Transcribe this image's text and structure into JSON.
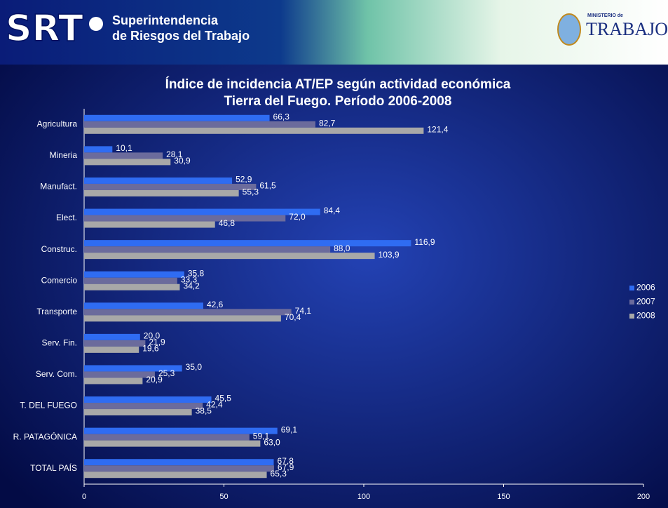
{
  "header": {
    "logo": "SRT",
    "org_line1": "Superintendencia",
    "org_line2": "de Riesgos del Trabajo",
    "ministry_small": "MINISTERIO de",
    "ministry": "TRABAJO"
  },
  "chart_data": {
    "type": "barh",
    "title": "Índice de incidencia  AT/EP según actividad económica",
    "subtitle": "Tierra del Fuego. Período 2006-2008",
    "categories": [
      "Agricultura",
      "Mineria",
      "Manufact.",
      "Elect.",
      "Construc.",
      "Comercio",
      "Transporte",
      "Serv. Fin.",
      "Serv. Com.",
      "T. DEL FUEGO",
      "R. PATAGÓNICA",
      "TOTAL PAÍS"
    ],
    "series": [
      {
        "name": "2006",
        "color": "#2f6cf2",
        "values": [
          66.3,
          10.1,
          52.9,
          84.4,
          116.9,
          35.8,
          42.6,
          20.0,
          35.0,
          45.5,
          69.1,
          67.8
        ],
        "value_labels": [
          "66,3",
          "10,1",
          "52,9",
          "84,4",
          "116,9",
          "35,8",
          "42,6",
          "20,0",
          "35,0",
          "45,5",
          "69,1",
          "67,8"
        ]
      },
      {
        "name": "2007",
        "color": "#6b6b9c",
        "values": [
          82.7,
          28.1,
          61.5,
          72.0,
          88.0,
          33.3,
          74.1,
          21.9,
          25.3,
          42.4,
          59.1,
          67.9
        ],
        "value_labels": [
          "82,7",
          "28,1",
          "61,5",
          "72,0",
          "88,0",
          "33,3",
          "74,1",
          "21,9",
          "25,3",
          "42,4",
          "59,1",
          "67,9"
        ]
      },
      {
        "name": "2008",
        "color": "#a8a8a8",
        "values": [
          121.4,
          30.9,
          55.3,
          46.8,
          103.9,
          34.2,
          70.4,
          19.6,
          20.9,
          38.5,
          63.0,
          65.3
        ],
        "value_labels": [
          "121,4",
          "30,9",
          "55,3",
          "46,8",
          "103,9",
          "34,2",
          "70,4",
          "19,6",
          "20,9",
          "38,5",
          "63,0",
          "65,3"
        ]
      }
    ],
    "xlim": [
      0,
      200
    ],
    "xticks": [
      0,
      50,
      100,
      150,
      200
    ],
    "legend": "right"
  }
}
